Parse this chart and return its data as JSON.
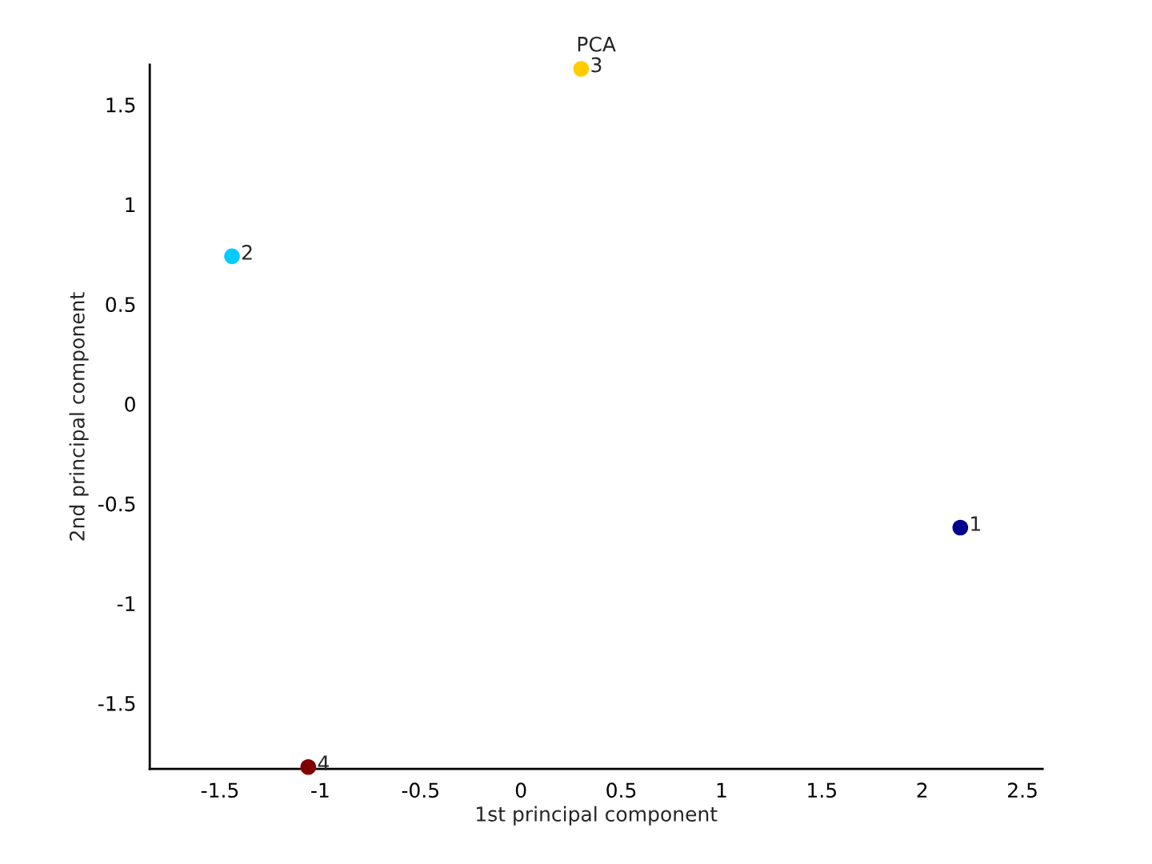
{
  "chart_data": {
    "type": "scatter",
    "title": "PCA",
    "xlabel": "1st principal component",
    "ylabel": "2nd principal component",
    "x": [
      2.19,
      -1.44,
      0.3,
      -1.06
    ],
    "values": [
      -0.62,
      0.74,
      1.68,
      -1.82
    ],
    "colors": [
      "#00008f",
      "#00ccff",
      "#ffcc00",
      "#800000"
    ],
    "marker": "circle",
    "xlim": [
      -1.85,
      2.6
    ],
    "ylim": [
      -1.83,
      1.7
    ],
    "xticks": [
      -1.5,
      -1,
      -0.5,
      0,
      0.5,
      1,
      1.5,
      2,
      2.5
    ],
    "yticks": [
      -1.5,
      -1,
      -0.5,
      0,
      0.5,
      1,
      1.5
    ],
    "annotations": [
      {
        "text": "1",
        "x": 2.19,
        "y": -0.62
      },
      {
        "text": "2",
        "x": -1.44,
        "y": 0.74
      },
      {
        "text": "3",
        "x": 0.3,
        "y": 1.68
      },
      {
        "text": "4",
        "x": -1.06,
        "y": -1.82
      }
    ]
  }
}
